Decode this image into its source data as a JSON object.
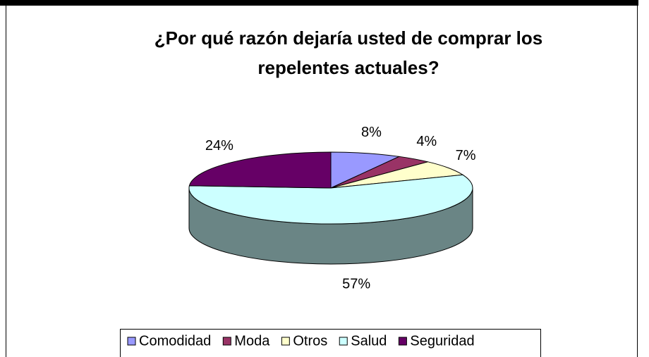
{
  "chart_data": {
    "type": "pie3d",
    "title": "¿Por qué razón dejaría usted de comprar los repelentes actuales?",
    "title_lines": [
      "¿Por qué razón dejaría usted de comprar los",
      "repelentes actuales?"
    ],
    "categories": [
      "Comodidad",
      "Moda",
      "Otros",
      "Salud",
      "Seguridad"
    ],
    "values": [
      8,
      4,
      7,
      57,
      24
    ],
    "value_labels": [
      "8%",
      "4%",
      "7%",
      "57%",
      "24%"
    ],
    "colors": [
      "#9999ff",
      "#993366",
      "#ffffcc",
      "#ccffff",
      "#660066"
    ],
    "legend": "bottom"
  }
}
